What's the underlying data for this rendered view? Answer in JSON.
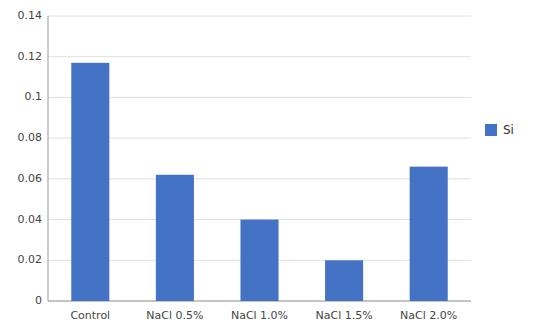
{
  "chart_data": {
    "type": "bar",
    "categories": [
      "Control",
      "NaCl 0.5%",
      "NaCl 1.0%",
      "NaCl 1.5%",
      "NaCl 2.0%"
    ],
    "series": [
      {
        "name": "Si",
        "color": "#4472C4",
        "values": [
          0.117,
          0.062,
          0.04,
          0.02,
          0.066
        ]
      }
    ],
    "ylim": [
      0,
      0.14
    ],
    "yticks": [
      0,
      0.02,
      0.04,
      0.06,
      0.08,
      0.1,
      0.12,
      0.14
    ],
    "grid": true,
    "legend": "right"
  }
}
